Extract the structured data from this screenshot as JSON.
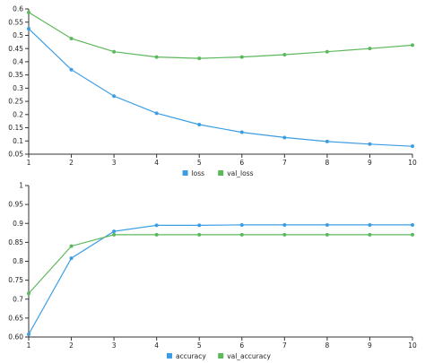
{
  "chart_data": [
    {
      "type": "line",
      "x": [
        1,
        2,
        3,
        4,
        5,
        6,
        7,
        8,
        9,
        10
      ],
      "xlim": [
        1,
        10
      ],
      "ylim": [
        0.05,
        0.6
      ],
      "yticks": [
        0.05,
        0.1,
        0.15,
        0.2,
        0.25,
        0.3,
        0.35,
        0.4,
        0.45,
        0.5,
        0.55,
        0.6
      ],
      "ytick_labels": [
        "0.05",
        "0.1",
        "0.15",
        "0.2",
        "0.25",
        "0.3",
        "0.35",
        "0.4",
        "0.45",
        "0.5",
        "0.55",
        "0.6"
      ],
      "xtick_labels": [
        "1",
        "2",
        "3",
        "4",
        "5",
        "6",
        "7",
        "8",
        "9",
        "10"
      ],
      "legend_position": "bottom-center",
      "grid": false,
      "series": [
        {
          "name": "loss",
          "color": "#3b9ee5",
          "values": [
            0.525,
            0.37,
            0.27,
            0.205,
            0.162,
            0.133,
            0.113,
            0.098,
            0.088,
            0.08
          ]
        },
        {
          "name": "val_loss",
          "color": "#5cb85c",
          "values": [
            0.587,
            0.488,
            0.438,
            0.418,
            0.413,
            0.418,
            0.427,
            0.438,
            0.45,
            0.463
          ]
        }
      ]
    },
    {
      "type": "line",
      "x": [
        1,
        2,
        3,
        4,
        5,
        6,
        7,
        8,
        9,
        10
      ],
      "xlim": [
        1,
        10
      ],
      "ylim": [
        0.6,
        1.0
      ],
      "yticks": [
        0.6,
        0.65,
        0.7,
        0.75,
        0.8,
        0.85,
        0.9,
        0.95,
        1
      ],
      "ytick_labels": [
        "0.60",
        "0.65",
        "0.7",
        "0.75",
        "0.8",
        "0.85",
        "0.9",
        "0.95",
        "1"
      ],
      "xtick_labels": [
        "1",
        "2",
        "3",
        "4",
        "5",
        "6",
        "7",
        "8",
        "9",
        "10"
      ],
      "legend_position": "bottom-center",
      "grid": false,
      "series": [
        {
          "name": "accuracy",
          "color": "#3b9ee5",
          "values": [
            0.607,
            0.808,
            0.879,
            0.895,
            0.895,
            0.896,
            0.896,
            0.896,
            0.896,
            0.896
          ]
        },
        {
          "name": "val_accuracy",
          "color": "#5cb85c",
          "values": [
            0.715,
            0.84,
            0.87,
            0.87,
            0.87,
            0.87,
            0.87,
            0.87,
            0.87,
            0.87
          ]
        }
      ]
    }
  ]
}
